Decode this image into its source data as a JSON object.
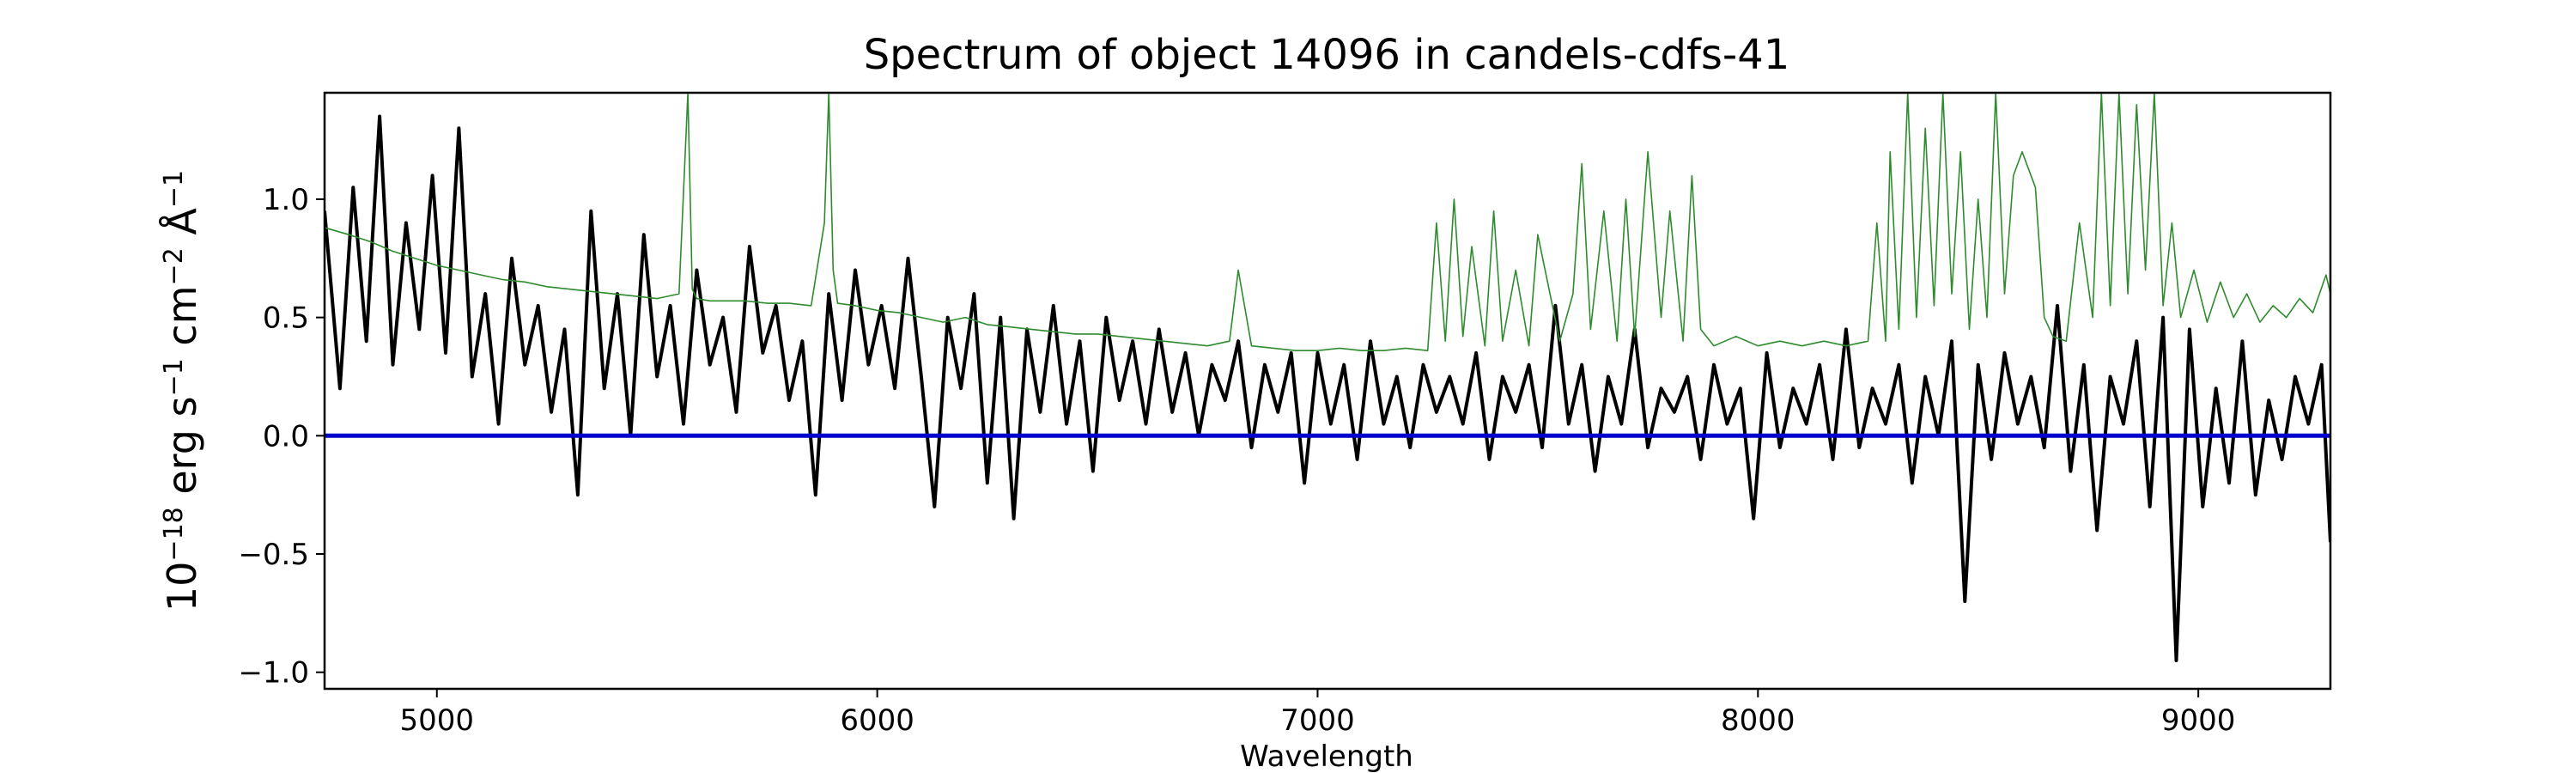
{
  "chart_data": {
    "type": "line",
    "title": "Spectrum of object 14096 in candels-cdfs-41",
    "xlabel": "Wavelength",
    "ylabel": {
      "prefix": "10",
      "exp": "−18",
      "text": " erg s",
      "s_exp": "−1",
      "cm": " cm",
      "cm_exp": "−2",
      "angstrom": " Å",
      "a_exp": "−1"
    },
    "xlim": [
      4745,
      9300
    ],
    "ylim": [
      -1.07,
      1.45
    ],
    "x_ticks": [
      5000,
      6000,
      7000,
      8000,
      9000
    ],
    "x_tick_labels": [
      "5000",
      "6000",
      "7000",
      "8000",
      "9000"
    ],
    "y_ticks": [
      -1.0,
      -0.5,
      0.0,
      0.5,
      1.0
    ],
    "y_tick_labels": [
      "−1.0",
      "−0.5",
      "0.0",
      "0.5",
      "1.0"
    ],
    "grid": false,
    "legend": "none",
    "series": [
      {
        "role": "flux",
        "color": "#000000",
        "x": [
          4745,
          4780,
          4810,
          4840,
          4870,
          4900,
          4930,
          4960,
          4990,
          5020,
          5050,
          5080,
          5110,
          5140,
          5170,
          5200,
          5230,
          5260,
          5290,
          5320,
          5350,
          5380,
          5410,
          5440,
          5470,
          5500,
          5530,
          5560,
          5590,
          5620,
          5650,
          5680,
          5710,
          5740,
          5770,
          5800,
          5830,
          5860,
          5890,
          5920,
          5950,
          5980,
          6010,
          6040,
          6070,
          6100,
          6130,
          6160,
          6190,
          6220,
          6250,
          6280,
          6310,
          6340,
          6370,
          6400,
          6430,
          6460,
          6490,
          6520,
          6550,
          6580,
          6610,
          6640,
          6670,
          6700,
          6730,
          6760,
          6790,
          6820,
          6850,
          6880,
          6910,
          6940,
          6970,
          7000,
          7030,
          7060,
          7090,
          7120,
          7150,
          7180,
          7210,
          7240,
          7270,
          7300,
          7330,
          7360,
          7390,
          7420,
          7450,
          7480,
          7510,
          7540,
          7570,
          7600,
          7630,
          7660,
          7690,
          7720,
          7750,
          7780,
          7810,
          7840,
          7870,
          7900,
          7930,
          7960,
          7990,
          8020,
          8050,
          8080,
          8110,
          8140,
          8170,
          8200,
          8230,
          8260,
          8290,
          8320,
          8350,
          8380,
          8410,
          8440,
          8470,
          8500,
          8530,
          8560,
          8590,
          8620,
          8650,
          8680,
          8710,
          8740,
          8770,
          8800,
          8830,
          8860,
          8890,
          8920,
          8950,
          8980,
          9010,
          9040,
          9070,
          9100,
          9130,
          9160,
          9190,
          9220,
          9250,
          9280,
          9300
        ],
        "y": [
          0.95,
          0.2,
          1.05,
          0.4,
          1.35,
          0.3,
          0.9,
          0.45,
          1.1,
          0.35,
          1.3,
          0.25,
          0.6,
          0.05,
          0.75,
          0.3,
          0.55,
          0.1,
          0.45,
          -0.25,
          0.95,
          0.2,
          0.6,
          0.0,
          0.85,
          0.25,
          0.55,
          0.05,
          0.7,
          0.3,
          0.5,
          0.1,
          0.8,
          0.35,
          0.55,
          0.15,
          0.4,
          -0.25,
          0.6,
          0.15,
          0.7,
          0.3,
          0.55,
          0.2,
          0.75,
          0.25,
          -0.3,
          0.5,
          0.2,
          0.6,
          -0.2,
          0.5,
          -0.35,
          0.45,
          0.1,
          0.55,
          0.05,
          0.4,
          -0.15,
          0.5,
          0.15,
          0.4,
          0.05,
          0.45,
          0.1,
          0.35,
          0.0,
          0.3,
          0.15,
          0.4,
          -0.05,
          0.3,
          0.1,
          0.35,
          -0.2,
          0.35,
          0.05,
          0.3,
          -0.1,
          0.4,
          0.05,
          0.25,
          -0.05,
          0.3,
          0.1,
          0.25,
          0.05,
          0.35,
          -0.1,
          0.25,
          0.1,
          0.3,
          -0.05,
          0.55,
          0.05,
          0.3,
          -0.15,
          0.25,
          0.05,
          0.45,
          -0.05,
          0.2,
          0.1,
          0.25,
          -0.1,
          0.3,
          0.05,
          0.2,
          -0.35,
          0.35,
          -0.05,
          0.2,
          0.05,
          0.3,
          -0.1,
          0.45,
          -0.05,
          0.2,
          0.05,
          0.3,
          -0.2,
          0.25,
          0.0,
          0.4,
          -0.7,
          0.3,
          -0.1,
          0.35,
          0.05,
          0.25,
          -0.05,
          0.55,
          -0.15,
          0.3,
          -0.4,
          0.25,
          0.05,
          0.4,
          -0.3,
          0.5,
          -0.95,
          0.45,
          -0.3,
          0.2,
          -0.2,
          0.4,
          -0.25,
          0.15,
          -0.1,
          0.25,
          0.05,
          0.3,
          -0.45
        ]
      },
      {
        "role": "noise",
        "color": "#2e8b2e",
        "x": [
          4745,
          4800,
          4850,
          4900,
          4950,
          5000,
          5050,
          5100,
          5150,
          5200,
          5250,
          5300,
          5350,
          5400,
          5450,
          5500,
          5550,
          5570,
          5580,
          5590,
          5620,
          5700,
          5750,
          5800,
          5850,
          5880,
          5890,
          5900,
          5910,
          5950,
          6000,
          6050,
          6100,
          6150,
          6200,
          6250,
          6300,
          6350,
          6400,
          6450,
          6500,
          6550,
          6600,
          6650,
          6700,
          6750,
          6800,
          6820,
          6850,
          6900,
          6950,
          7000,
          7050,
          7100,
          7150,
          7200,
          7250,
          7270,
          7290,
          7310,
          7330,
          7350,
          7380,
          7400,
          7420,
          7450,
          7480,
          7500,
          7550,
          7580,
          7600,
          7620,
          7650,
          7680,
          7700,
          7720,
          7750,
          7780,
          7800,
          7830,
          7850,
          7870,
          7900,
          7950,
          8000,
          8050,
          8100,
          8150,
          8200,
          8250,
          8270,
          8290,
          8300,
          8320,
          8340,
          8360,
          8380,
          8400,
          8420,
          8440,
          8460,
          8480,
          8500,
          8520,
          8540,
          8560,
          8580,
          8600,
          8630,
          8650,
          8670,
          8700,
          8730,
          8760,
          8780,
          8800,
          8820,
          8840,
          8860,
          8880,
          8900,
          8920,
          8940,
          8960,
          8990,
          9020,
          9050,
          9080,
          9110,
          9140,
          9170,
          9200,
          9230,
          9260,
          9290,
          9300
        ],
        "y": [
          0.88,
          0.85,
          0.82,
          0.78,
          0.75,
          0.72,
          0.7,
          0.68,
          0.66,
          0.65,
          0.63,
          0.62,
          0.61,
          0.6,
          0.59,
          0.58,
          0.6,
          1.45,
          0.62,
          0.58,
          0.57,
          0.57,
          0.56,
          0.56,
          0.55,
          0.9,
          1.45,
          0.7,
          0.56,
          0.55,
          0.53,
          0.52,
          0.5,
          0.48,
          0.5,
          0.47,
          0.46,
          0.45,
          0.44,
          0.43,
          0.43,
          0.42,
          0.41,
          0.4,
          0.39,
          0.38,
          0.4,
          0.7,
          0.38,
          0.37,
          0.36,
          0.36,
          0.37,
          0.36,
          0.36,
          0.37,
          0.36,
          0.9,
          0.4,
          1.0,
          0.42,
          0.8,
          0.38,
          0.95,
          0.4,
          0.7,
          0.38,
          0.85,
          0.4,
          0.6,
          1.15,
          0.45,
          0.95,
          0.4,
          1.0,
          0.42,
          1.2,
          0.5,
          0.95,
          0.4,
          1.1,
          0.45,
          0.38,
          0.42,
          0.38,
          0.4,
          0.38,
          0.4,
          0.38,
          0.4,
          0.9,
          0.4,
          1.2,
          0.45,
          1.45,
          0.5,
          1.3,
          0.55,
          1.45,
          0.6,
          1.2,
          0.45,
          1.0,
          0.5,
          1.45,
          0.6,
          1.1,
          1.2,
          1.05,
          0.5,
          0.42,
          0.4,
          0.9,
          0.5,
          1.45,
          0.55,
          1.45,
          0.6,
          1.4,
          0.7,
          1.45,
          0.55,
          0.9,
          0.5,
          0.7,
          0.48,
          0.65,
          0.5,
          0.6,
          0.48,
          0.55,
          0.5,
          0.58,
          0.52,
          0.68,
          0.6
        ]
      },
      {
        "role": "zero",
        "color": "#0000cc",
        "x": [
          4745,
          9300
        ],
        "y": [
          0.0,
          0.0
        ]
      }
    ]
  }
}
